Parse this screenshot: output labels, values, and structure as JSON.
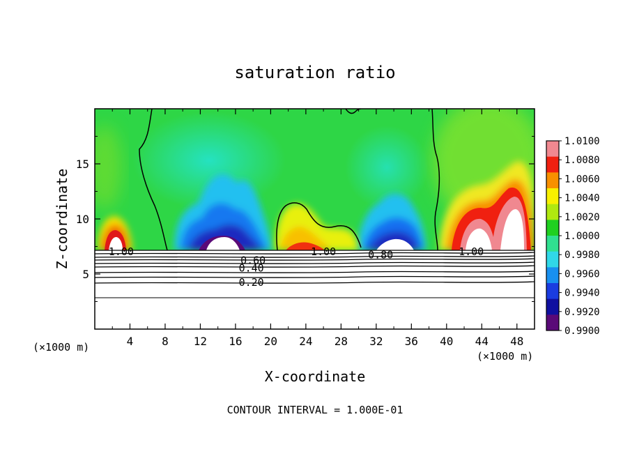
{
  "chart_data": {
    "type": "heatmap",
    "title": "saturation ratio",
    "xlabel": "X-coordinate",
    "ylabel": "Z-coordinate",
    "x_unit": "(×1000 m)",
    "x_unit_right": "(×1000 m)",
    "xlim": [
      0,
      50
    ],
    "ylim": [
      0,
      20
    ],
    "x_ticks": [
      4,
      8,
      12,
      16,
      20,
      24,
      28,
      32,
      36,
      40,
      44,
      48
    ],
    "x_tick_labels": [
      "4",
      "8",
      "12",
      "16",
      "20",
      "24",
      "28",
      "32",
      "36",
      "40",
      "44",
      "48"
    ],
    "y_ticks": [
      5,
      10,
      15
    ],
    "y_tick_labels": [
      "5",
      "10",
      "15"
    ],
    "colorbar": {
      "levels": [
        0.99,
        0.992,
        0.994,
        0.996,
        0.998,
        1.0,
        1.002,
        1.004,
        1.006,
        1.008,
        1.01
      ],
      "labels": [
        "0.9900",
        "0.9920",
        "0.9940",
        "0.9960",
        "0.9980",
        "1.0000",
        "1.0020",
        "1.0040",
        "1.0060",
        "1.0080",
        "1.0100"
      ],
      "colors": [
        "#5a0a78",
        "#1010a0",
        "#1a3ce0",
        "#1890f0",
        "#30d8e8",
        "#30e090",
        "#20d020",
        "#b0e810",
        "#f8f000",
        "#f89000",
        "#f02010",
        "#f08890"
      ]
    },
    "contour_labels": [
      {
        "text": "1.00",
        "x": 3.0,
        "z": 7.1
      },
      {
        "text": "0.60",
        "x": 18.0,
        "z": 6.3
      },
      {
        "text": "0.40",
        "x": 17.8,
        "z": 5.6
      },
      {
        "text": "0.20",
        "x": 17.8,
        "z": 4.3
      },
      {
        "text": "1.00",
        "x": 26.0,
        "z": 7.1
      },
      {
        "text": "0.80",
        "x": 32.5,
        "z": 6.8
      },
      {
        "text": "1.00",
        "x": 42.8,
        "z": 7.1
      }
    ],
    "contour_interval_text": "CONTOUR INTERVAL = 1.000E-01"
  }
}
